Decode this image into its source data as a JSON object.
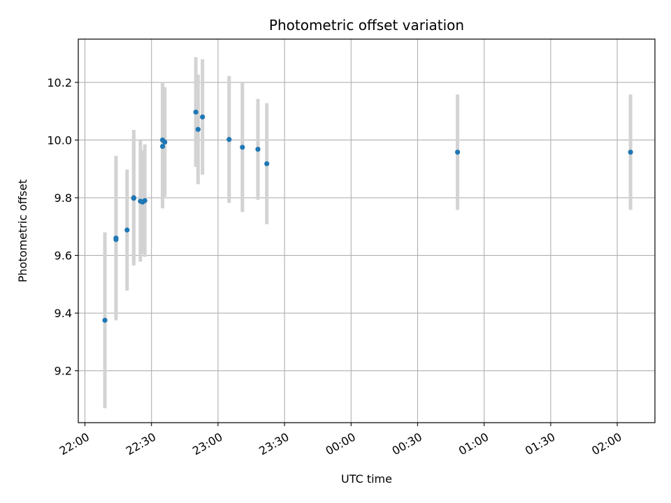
{
  "chart_data": {
    "type": "scatter",
    "title": "Photometric offset variation",
    "xlabel": "UTC time",
    "ylabel": "Photometric offset",
    "x_axis_kind": "time",
    "xlim": [
      "21:57",
      "02:17"
    ],
    "ylim": [
      9.02,
      10.35
    ],
    "x_ticks": [
      "22:00",
      "22:30",
      "23:00",
      "23:30",
      "00:00",
      "00:30",
      "01:00",
      "01:30",
      "02:00"
    ],
    "y_ticks": [
      9.2,
      9.4,
      9.6,
      9.8,
      10.0,
      10.2
    ],
    "x_tick_rotation": "30-degree",
    "grid": true,
    "legend": "none",
    "colors": {
      "point": "#1f77b4",
      "errorbar": "#d3d3d3",
      "grid": "#b0b0b0",
      "axes": "#000000"
    },
    "points": [
      {
        "x": "22:09",
        "y": 9.375,
        "err": 0.305
      },
      {
        "x": "22:14",
        "y": 9.66,
        "err": 0.285
      },
      {
        "x": "22:14",
        "y": 9.655,
        "err": 0.27
      },
      {
        "x": "22:19",
        "y": 9.688,
        "err": 0.21
      },
      {
        "x": "22:22",
        "y": 9.8,
        "err": 0.235
      },
      {
        "x": "22:22",
        "y": 9.798,
        "err": 0.22
      },
      {
        "x": "22:25",
        "y": 9.788,
        "err": 0.21
      },
      {
        "x": "22:26",
        "y": 9.785,
        "err": 0.18
      },
      {
        "x": "22:27",
        "y": 9.79,
        "err": 0.195
      },
      {
        "x": "22:35",
        "y": 9.978,
        "err": 0.215
      },
      {
        "x": "22:35",
        "y": 10.0,
        "err": 0.2
      },
      {
        "x": "22:36",
        "y": 9.993,
        "err": 0.19
      },
      {
        "x": "22:50",
        "y": 10.097,
        "err": 0.19
      },
      {
        "x": "22:51",
        "y": 10.037,
        "err": 0.19
      },
      {
        "x": "22:53",
        "y": 10.08,
        "err": 0.2
      },
      {
        "x": "23:05",
        "y": 10.002,
        "err": 0.22
      },
      {
        "x": "23:11",
        "y": 9.975,
        "err": 0.225
      },
      {
        "x": "23:18",
        "y": 9.968,
        "err": 0.175
      },
      {
        "x": "23:22",
        "y": 9.918,
        "err": 0.21
      },
      {
        "x": "00:48",
        "y": 9.958,
        "err": 0.2
      },
      {
        "x": "02:06",
        "y": 9.958,
        "err": 0.2
      }
    ]
  }
}
